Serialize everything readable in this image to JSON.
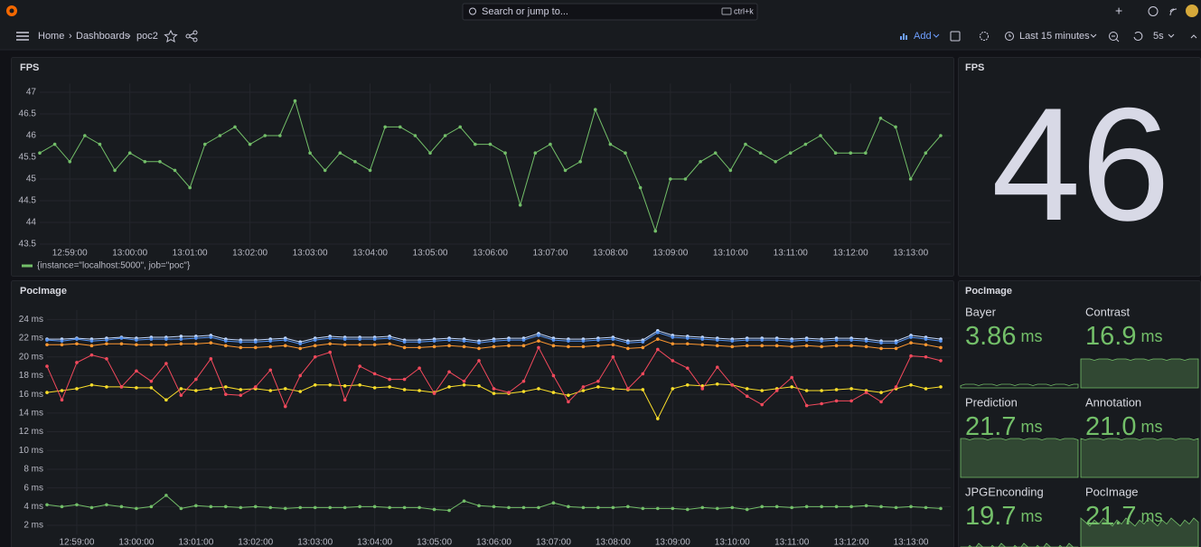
{
  "topbar": {
    "search_placeholder": "Search or jump to...",
    "shortcut": "ctrl+k"
  },
  "navbar": {
    "breadcrumb": [
      "Home",
      "Dashboards",
      "poc2"
    ],
    "add": "Add",
    "time_range": "Last 15 minutes",
    "refresh": "5s"
  },
  "chart_data": [
    {
      "type": "line",
      "title": "FPS",
      "x": [
        "12:58:30",
        "12:58:45",
        "12:59:00",
        "12:59:15",
        "12:59:30",
        "12:59:45",
        "13:00:00",
        "13:00:15",
        "13:00:30",
        "13:00:45",
        "13:01:00",
        "13:01:15",
        "13:01:30",
        "13:01:45",
        "13:02:00",
        "13:02:15",
        "13:02:30",
        "13:02:45",
        "13:03:00",
        "13:03:15",
        "13:03:30",
        "13:03:45",
        "13:04:00",
        "13:04:15",
        "13:04:30",
        "13:04:45",
        "13:05:00",
        "13:05:15",
        "13:05:30",
        "13:05:45",
        "13:06:00",
        "13:06:15",
        "13:06:30",
        "13:06:45",
        "13:07:00",
        "13:07:15",
        "13:07:30",
        "13:07:45",
        "13:08:00",
        "13:08:15",
        "13:08:30",
        "13:08:45",
        "13:09:00",
        "13:09:15",
        "13:09:30",
        "13:09:45",
        "13:10:00",
        "13:10:15",
        "13:10:30",
        "13:10:45",
        "13:11:00",
        "13:11:15",
        "13:11:30",
        "13:11:45",
        "13:12:00",
        "13:12:15",
        "13:12:30",
        "13:12:45",
        "13:13:00",
        "13:13:15",
        "13:13:30"
      ],
      "series": [
        {
          "name": "{instance=\"localhost:5000\", job=\"poc\"}",
          "color": "#73bf69",
          "values": [
            45.6,
            45.8,
            45.4,
            46.0,
            45.8,
            45.2,
            45.6,
            45.4,
            45.4,
            45.2,
            44.8,
            45.8,
            46.0,
            46.2,
            45.8,
            46.0,
            46.0,
            46.8,
            45.6,
            45.2,
            45.6,
            45.4,
            45.2,
            46.2,
            46.2,
            46.0,
            45.6,
            46.0,
            46.2,
            45.8,
            45.8,
            45.6,
            44.4,
            45.6,
            45.8,
            45.2,
            45.4,
            46.6,
            45.8,
            45.6,
            44.8,
            43.8,
            45.0,
            45.0,
            45.4,
            45.6,
            45.2,
            45.8,
            45.6,
            45.4,
            45.6,
            45.8,
            46.0,
            45.6,
            45.6,
            45.6,
            46.4,
            46.2,
            45.0,
            45.6,
            46.0
          ]
        }
      ],
      "xlim": [
        "12:58:30",
        "13:13:40"
      ],
      "xticks": [
        "12:59:00",
        "13:00:00",
        "13:01:00",
        "13:02:00",
        "13:03:00",
        "13:04:00",
        "13:05:00",
        "13:06:00",
        "13:07:00",
        "13:08:00",
        "13:09:00",
        "13:10:00",
        "13:11:00",
        "13:12:00",
        "13:13:00"
      ],
      "ylim": [
        43.4,
        47.2
      ],
      "yticks": [
        43.5,
        44,
        44.5,
        45,
        45.5,
        46,
        46.5,
        47
      ],
      "grid": true,
      "legend": "bottom-left"
    },
    {
      "type": "line",
      "title": "PocImage",
      "x": [
        "12:58:30",
        "12:58:45",
        "12:59:00",
        "12:59:15",
        "12:59:30",
        "12:59:45",
        "13:00:00",
        "13:00:15",
        "13:00:30",
        "13:00:45",
        "13:01:00",
        "13:01:15",
        "13:01:30",
        "13:01:45",
        "13:02:00",
        "13:02:15",
        "13:02:30",
        "13:02:45",
        "13:03:00",
        "13:03:15",
        "13:03:30",
        "13:03:45",
        "13:04:00",
        "13:04:15",
        "13:04:30",
        "13:04:45",
        "13:05:00",
        "13:05:15",
        "13:05:30",
        "13:05:45",
        "13:06:00",
        "13:06:15",
        "13:06:30",
        "13:06:45",
        "13:07:00",
        "13:07:15",
        "13:07:30",
        "13:07:45",
        "13:08:00",
        "13:08:15",
        "13:08:30",
        "13:08:45",
        "13:09:00",
        "13:09:15",
        "13:09:30",
        "13:09:45",
        "13:10:00",
        "13:10:15",
        "13:10:30",
        "13:10:45",
        "13:11:00",
        "13:11:15",
        "13:11:30",
        "13:11:45",
        "13:12:00",
        "13:12:15",
        "13:12:30",
        "13:12:45",
        "13:13:00",
        "13:13:15",
        "13:13:30"
      ],
      "series": [
        {
          "color": "#73bf69",
          "values": [
            4.2,
            4.0,
            4.2,
            3.9,
            4.2,
            4.0,
            3.8,
            4.0,
            5.2,
            3.8,
            4.1,
            4.0,
            4.0,
            3.9,
            4.0,
            3.9,
            3.8,
            3.9,
            3.9,
            3.9,
            3.9,
            4.0,
            4.0,
            3.9,
            3.9,
            3.9,
            3.7,
            3.6,
            4.6,
            4.1,
            4.0,
            3.9,
            3.9,
            3.9,
            4.4,
            4.0,
            3.9,
            3.9,
            3.9,
            4.0,
            3.8,
            3.8,
            3.8,
            3.7,
            3.9,
            3.8,
            3.9,
            3.7,
            4.0,
            4.0,
            3.9,
            4.0,
            4.0,
            4.0,
            4.0,
            4.1,
            4.0,
            3.9,
            4.0,
            3.9,
            3.8
          ]
        },
        {
          "color": "#fade2a",
          "values": [
            16.2,
            16.4,
            16.6,
            17.0,
            16.8,
            16.8,
            16.7,
            16.7,
            15.4,
            16.6,
            16.4,
            16.6,
            16.8,
            16.5,
            16.6,
            16.4,
            16.6,
            16.3,
            17.0,
            17.0,
            16.9,
            17.0,
            16.7,
            16.8,
            16.5,
            16.4,
            16.2,
            16.8,
            17.0,
            16.9,
            16.1,
            16.1,
            16.3,
            16.6,
            16.2,
            15.9,
            16.4,
            16.8,
            16.6,
            16.5,
            16.5,
            13.4,
            16.6,
            17.0,
            16.9,
            17.1,
            17.0,
            16.6,
            16.4,
            16.6,
            16.8,
            16.4,
            16.4,
            16.5,
            16.6,
            16.4,
            16.2,
            16.6,
            17.0,
            16.6,
            16.8
          ]
        },
        {
          "color": "#f2495c",
          "values": [
            19.0,
            15.4,
            19.4,
            20.2,
            19.8,
            16.8,
            18.5,
            17.4,
            19.3,
            15.9,
            17.6,
            19.8,
            16.0,
            15.9,
            16.8,
            18.6,
            14.7,
            18.0,
            20.0,
            20.5,
            15.4,
            19.0,
            18.2,
            17.6,
            17.6,
            18.8,
            16.1,
            18.4,
            17.4,
            19.6,
            16.6,
            16.2,
            17.4,
            21.0,
            18.0,
            15.2,
            16.8,
            17.4,
            20.0,
            16.6,
            18.2,
            20.8,
            19.6,
            18.8,
            16.6,
            18.9,
            17.0,
            15.8,
            14.9,
            16.4,
            17.8,
            14.8,
            15.0,
            15.3,
            15.3,
            16.2,
            15.2,
            16.8,
            20.1,
            20.0,
            19.6
          ]
        },
        {
          "color": "#ff9830",
          "values": [
            21.3,
            21.3,
            21.4,
            21.2,
            21.4,
            21.4,
            21.3,
            21.3,
            21.3,
            21.4,
            21.4,
            21.5,
            21.2,
            21.0,
            21.0,
            21.1,
            21.2,
            20.9,
            21.2,
            21.4,
            21.3,
            21.3,
            21.3,
            21.4,
            21.0,
            21.0,
            21.1,
            21.2,
            21.1,
            20.9,
            21.1,
            21.2,
            21.2,
            21.7,
            21.2,
            21.1,
            21.1,
            21.2,
            21.3,
            20.9,
            21.0,
            21.9,
            21.4,
            21.4,
            21.3,
            21.2,
            21.1,
            21.2,
            21.2,
            21.2,
            21.1,
            21.2,
            21.1,
            21.2,
            21.2,
            21.1,
            20.9,
            20.9,
            21.5,
            21.3,
            21.0
          ]
        },
        {
          "color": "#c0d8ff",
          "values": [
            21.9,
            21.9,
            22.0,
            21.9,
            22.0,
            22.1,
            22.0,
            22.1,
            22.1,
            22.2,
            22.2,
            22.3,
            21.9,
            21.8,
            21.8,
            21.9,
            22.0,
            21.6,
            22.0,
            22.2,
            22.1,
            22.1,
            22.1,
            22.2,
            21.8,
            21.8,
            21.9,
            22.0,
            21.9,
            21.7,
            21.9,
            22.0,
            22.0,
            22.5,
            22.0,
            21.9,
            21.9,
            22.0,
            22.1,
            21.7,
            21.8,
            22.8,
            22.3,
            22.2,
            22.1,
            22.0,
            21.9,
            22.0,
            22.0,
            22.0,
            21.9,
            22.0,
            21.9,
            22.0,
            22.0,
            21.9,
            21.7,
            21.7,
            22.3,
            22.1,
            21.9
          ]
        },
        {
          "color": "#5794f2",
          "values": [
            21.8,
            21.7,
            21.9,
            21.7,
            21.8,
            22.0,
            21.8,
            21.9,
            21.9,
            21.9,
            22.0,
            22.1,
            21.7,
            21.6,
            21.6,
            21.7,
            21.8,
            21.4,
            21.8,
            22.0,
            21.9,
            21.9,
            21.9,
            22.0,
            21.6,
            21.6,
            21.7,
            21.8,
            21.7,
            21.5,
            21.7,
            21.8,
            21.8,
            22.3,
            21.8,
            21.7,
            21.7,
            21.8,
            21.9,
            21.5,
            21.6,
            22.6,
            22.1,
            22.0,
            21.9,
            21.8,
            21.7,
            21.8,
            21.8,
            21.8,
            21.7,
            21.8,
            21.7,
            21.8,
            21.8,
            21.7,
            21.5,
            21.5,
            22.1,
            21.9,
            21.7
          ]
        }
      ],
      "xlim": [
        "12:58:30",
        "13:13:40"
      ],
      "xticks": [
        "12:59:00",
        "13:00:00",
        "13:01:00",
        "13:02:00",
        "13:03:00",
        "13:04:00",
        "13:05:00",
        "13:06:00",
        "13:07:00",
        "13:08:00",
        "13:09:00",
        "13:10:00",
        "13:11:00",
        "13:12:00",
        "13:13:00"
      ],
      "ylim": [
        1,
        25
      ],
      "yticks": [
        {
          "value": 2,
          "label": "2 ms"
        },
        {
          "value": 4,
          "label": "4 ms"
        },
        {
          "value": 6,
          "label": "6 ms"
        },
        {
          "value": 8,
          "label": "8 ms"
        },
        {
          "value": 10,
          "label": "10 ms"
        },
        {
          "value": 12,
          "label": "12 ms"
        },
        {
          "value": 14,
          "label": "14 ms"
        },
        {
          "value": 16,
          "label": "16 ms"
        },
        {
          "value": 18,
          "label": "18 ms"
        },
        {
          "value": 20,
          "label": "20 ms"
        },
        {
          "value": 22,
          "label": "22 ms"
        },
        {
          "value": 24,
          "label": "24 ms"
        }
      ],
      "grid": true
    }
  ],
  "fps_stat": {
    "title": "FPS",
    "value": 46
  },
  "pocimage_stat": {
    "title": "PocImage",
    "tiles": [
      {
        "name": "Bayer",
        "value": "3.86",
        "unit": "ms"
      },
      {
        "name": "Contrast",
        "value": "16.9",
        "unit": "ms"
      },
      {
        "name": "Prediction",
        "value": "21.7",
        "unit": "ms"
      },
      {
        "name": "Annotation",
        "value": "21.0",
        "unit": "ms"
      },
      {
        "name": "JPGEnconding",
        "value": "19.7",
        "unit": "ms"
      },
      {
        "name": "PocImage",
        "value": "21.7",
        "unit": "ms"
      }
    ]
  }
}
